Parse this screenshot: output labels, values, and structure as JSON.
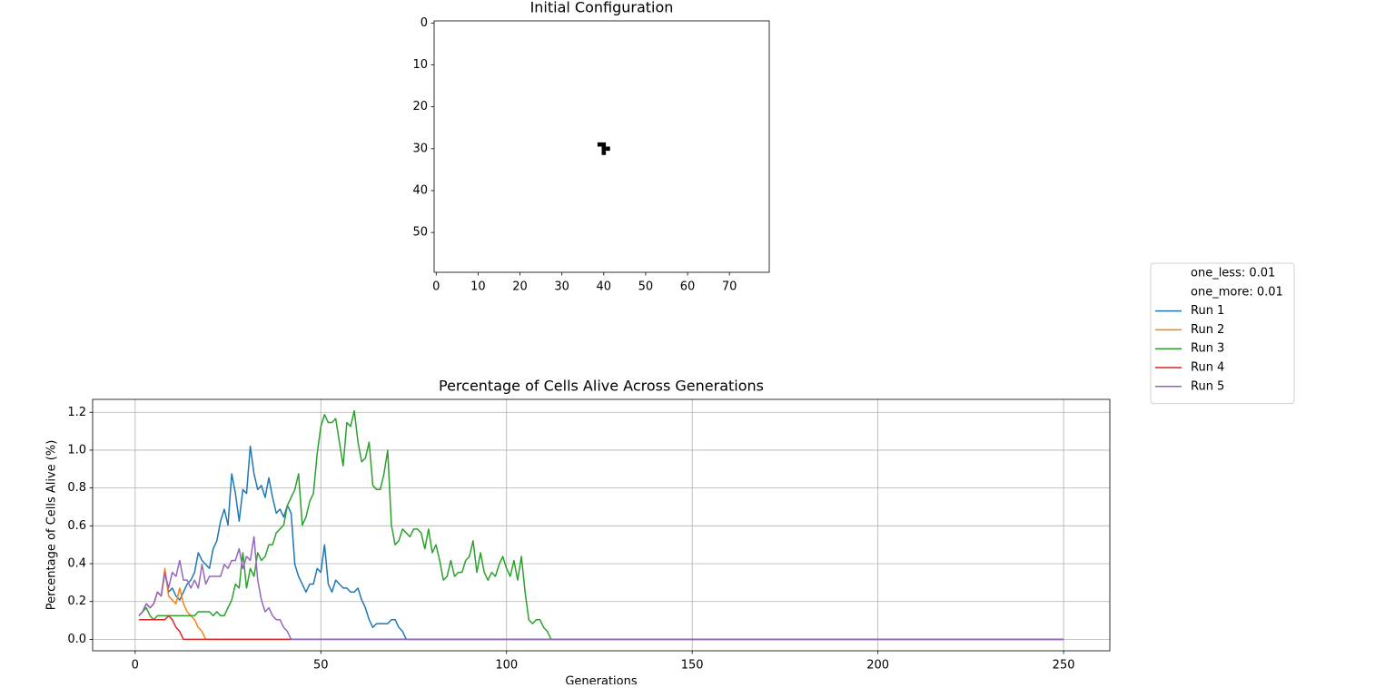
{
  "chart_data": [
    {
      "type": "image",
      "title": "Initial Configuration",
      "cells": [
        {
          "x": 39,
          "y": 29
        },
        {
          "x": 40,
          "y": 29
        },
        {
          "x": 40,
          "y": 30
        },
        {
          "x": 41,
          "y": 30
        },
        {
          "x": 40,
          "y": 31
        }
      ],
      "cell_color": "#000000",
      "background": "#ffffff",
      "xlim": [
        -0.5,
        79.5
      ],
      "ylim": [
        59.5,
        -0.5
      ],
      "xticks": [
        0,
        10,
        20,
        30,
        40,
        50,
        60,
        70
      ],
      "yticks": [
        0,
        10,
        20,
        30,
        40,
        50
      ]
    },
    {
      "type": "line",
      "title": "Percentage of Cells Alive Across Generations",
      "x_label": "Generations",
      "y_label": "Percentage of Cells Alive (%)",
      "xlim": [
        -11.45,
        262.45
      ],
      "ylim": [
        -0.0604,
        1.2684
      ],
      "xticks": [
        0,
        50,
        100,
        150,
        200,
        250
      ],
      "yticks": [
        {
          "value": 0,
          "label": "0.0"
        },
        0.2,
        0.4,
        0.6,
        0.8,
        {
          "value": 1,
          "label": "1.0"
        },
        1.2
      ],
      "grid": true,
      "legend_notes": [
        "one_less: 0.01",
        "one_more: 0.01"
      ],
      "series": [
        {
          "name": "Run 1",
          "color": "#1f77b4",
          "x": [
            1,
            2,
            3,
            4,
            5,
            6,
            7,
            8,
            9,
            10,
            11,
            12,
            13,
            14,
            15,
            16,
            17,
            18,
            19,
            20,
            21,
            22,
            23,
            24,
            25,
            26,
            27,
            28,
            29,
            30,
            31,
            32,
            33,
            34,
            35,
            36,
            37,
            38,
            39,
            40,
            41,
            42,
            43,
            44,
            45,
            46,
            47,
            48,
            49,
            50,
            51,
            52,
            53,
            54,
            55,
            56,
            57,
            58,
            59,
            60,
            61,
            62,
            63,
            64,
            65,
            66,
            67,
            68,
            69,
            70,
            71,
            72,
            73,
            250
          ],
          "values": [
            0.125,
            0.146,
            0.188,
            0.167,
            0.188,
            0.25,
            0.229,
            0.354,
            0.25,
            0.271,
            0.229,
            0.208,
            0.25,
            0.292,
            0.313,
            0.354,
            0.458,
            0.417,
            0.396,
            0.375,
            0.479,
            0.521,
            0.625,
            0.688,
            0.604,
            0.875,
            0.771,
            0.625,
            0.792,
            0.771,
            1.021,
            0.875,
            0.792,
            0.813,
            0.75,
            0.854,
            0.75,
            0.667,
            0.688,
            0.646,
            0.708,
            0.667,
            0.396,
            0.333,
            0.292,
            0.25,
            0.292,
            0.292,
            0.375,
            0.354,
            0.5,
            0.292,
            0.25,
            0.313,
            0.292,
            0.271,
            0.271,
            0.25,
            0.25,
            0.271,
            0.208,
            0.167,
            0.104,
            0.063,
            0.083,
            0.083,
            0.083,
            0.083,
            0.104,
            0.104,
            0.063,
            0.042,
            0,
            0
          ]
        },
        {
          "name": "Run 2",
          "color": "#ff7f0e",
          "x": [
            1,
            2,
            3,
            4,
            5,
            6,
            7,
            8,
            9,
            10,
            11,
            12,
            13,
            14,
            15,
            16,
            17,
            18,
            19,
            250
          ],
          "values": [
            0.125,
            0.146,
            0.188,
            0.167,
            0.188,
            0.25,
            0.229,
            0.375,
            0.229,
            0.208,
            0.188,
            0.271,
            0.188,
            0.146,
            0.125,
            0.104,
            0.063,
            0.042,
            0,
            0
          ]
        },
        {
          "name": "Run 3",
          "color": "#2ca02c",
          "x": [
            1,
            2,
            3,
            4,
            5,
            6,
            7,
            8,
            9,
            10,
            11,
            12,
            13,
            14,
            15,
            16,
            17,
            18,
            19,
            20,
            21,
            22,
            23,
            24,
            25,
            26,
            27,
            28,
            29,
            30,
            31,
            32,
            33,
            34,
            35,
            36,
            37,
            38,
            39,
            40,
            41,
            42,
            43,
            44,
            45,
            46,
            47,
            48,
            49,
            50,
            51,
            52,
            53,
            54,
            55,
            56,
            57,
            58,
            59,
            60,
            61,
            62,
            63,
            64,
            65,
            66,
            67,
            68,
            69,
            70,
            71,
            72,
            73,
            74,
            75,
            76,
            77,
            78,
            79,
            80,
            81,
            82,
            83,
            84,
            85,
            86,
            87,
            88,
            89,
            90,
            91,
            92,
            93,
            94,
            95,
            96,
            97,
            98,
            99,
            100,
            101,
            102,
            103,
            104,
            105,
            106,
            107,
            108,
            109,
            110,
            111,
            112,
            250
          ],
          "values": [
            0.125,
            0.146,
            0.167,
            0.125,
            0.104,
            0.125,
            0.125,
            0.125,
            0.125,
            0.125,
            0.125,
            0.125,
            0.125,
            0.125,
            0.125,
            0.125,
            0.146,
            0.146,
            0.146,
            0.146,
            0.125,
            0.146,
            0.125,
            0.125,
            0.167,
            0.208,
            0.292,
            0.271,
            0.458,
            0.271,
            0.375,
            0.333,
            0.458,
            0.417,
            0.438,
            0.5,
            0.5,
            0.563,
            0.583,
            0.604,
            0.708,
            0.75,
            0.792,
            0.875,
            0.604,
            0.646,
            0.729,
            0.771,
            0.979,
            1.125,
            1.188,
            1.146,
            1.146,
            1.167,
            1.042,
            0.917,
            1.146,
            1.125,
            1.208,
            1.042,
            0.938,
            0.958,
            1.042,
            0.813,
            0.792,
            0.792,
            0.875,
            1.0,
            0.604,
            0.5,
            0.521,
            0.583,
            0.563,
            0.542,
            0.583,
            0.583,
            0.563,
            0.479,
            0.583,
            0.458,
            0.5,
            0.417,
            0.313,
            0.333,
            0.417,
            0.333,
            0.354,
            0.354,
            0.417,
            0.438,
            0.521,
            0.354,
            0.458,
            0.354,
            0.313,
            0.354,
            0.333,
            0.396,
            0.438,
            0.375,
            0.333,
            0.417,
            0.313,
            0.438,
            0.25,
            0.104,
            0.083,
            0.104,
            0.104,
            0.063,
            0.042,
            0,
            0
          ]
        },
        {
          "name": "Run 4",
          "color": "#d62728",
          "x": [
            1,
            2,
            3,
            4,
            5,
            6,
            7,
            8,
            9,
            10,
            11,
            12,
            13,
            250
          ],
          "values": [
            0.104,
            0.104,
            0.104,
            0.104,
            0.104,
            0.104,
            0.104,
            0.104,
            0.125,
            0.104,
            0.063,
            0.042,
            0,
            0
          ]
        },
        {
          "name": "Run 5",
          "color": "#9467bd",
          "x": [
            1,
            2,
            3,
            4,
            5,
            6,
            7,
            8,
            9,
            10,
            11,
            12,
            13,
            14,
            15,
            16,
            17,
            18,
            19,
            20,
            21,
            22,
            23,
            24,
            25,
            26,
            27,
            28,
            29,
            30,
            31,
            32,
            33,
            34,
            35,
            36,
            37,
            38,
            39,
            40,
            41,
            42,
            250
          ],
          "values": [
            0.125,
            0.146,
            0.188,
            0.167,
            0.188,
            0.25,
            0.229,
            0.354,
            0.271,
            0.354,
            0.333,
            0.417,
            0.313,
            0.313,
            0.271,
            0.313,
            0.271,
            0.396,
            0.292,
            0.333,
            0.333,
            0.333,
            0.333,
            0.396,
            0.375,
            0.417,
            0.417,
            0.479,
            0.375,
            0.438,
            0.417,
            0.542,
            0.313,
            0.208,
            0.146,
            0.167,
            0.125,
            0.104,
            0.104,
            0.063,
            0.042,
            0,
            0
          ]
        }
      ]
    }
  ]
}
